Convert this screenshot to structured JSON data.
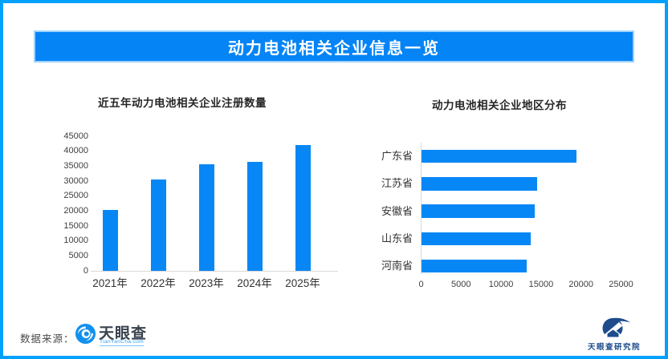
{
  "title": "动力电池相关企业信息一览",
  "colors": {
    "accent_blue": "#0787f6",
    "page_border_blue": "#00a1fd",
    "banner_blue": "#0584f6",
    "banner_border": "#9fd3fc",
    "axis_text": "#404040",
    "chart_title_text": "#262626",
    "axis_line": "#d9d9d9",
    "research_navy": "#1d4b8c",
    "wordmark_dark": "#39434e",
    "link_blue": "#2e9cf5"
  },
  "chart_data": [
    {
      "type": "bar",
      "orientation": "vertical",
      "title": "近五年动力电池相关企业注册数量",
      "categories": [
        "2021年",
        "2022年",
        "2023年",
        "2024年",
        "2025年"
      ],
      "values": [
        20300,
        30500,
        35500,
        36400,
        42100
      ],
      "xlabel": "",
      "ylabel": "",
      "ylim": [
        0,
        45000
      ],
      "ytick_step": 5000,
      "grid": false,
      "legend": false,
      "bar_color": "#0787f6"
    },
    {
      "type": "bar",
      "orientation": "horizontal",
      "title": "动力电池相关企业地区分布",
      "categories": [
        "广东省",
        "江苏省",
        "安徽省",
        "山东省",
        "河南省"
      ],
      "values": [
        19400,
        14500,
        14200,
        13700,
        13200
      ],
      "xlabel": "",
      "ylabel": "",
      "xlim": [
        0,
        25000
      ],
      "xtick_step": 5000,
      "grid": false,
      "legend": false,
      "bar_color": "#0787f6"
    }
  ],
  "footer": {
    "source_label": "数据来源：",
    "logo_text": "天眼查",
    "logo_subtext": "TianYanCha.com",
    "research_logo_text": "天眼查研究院"
  },
  "icons": {
    "tianyancha_eye": "tianyancha-eye-icon",
    "research_emblem": "tianyancha-research-icon"
  }
}
